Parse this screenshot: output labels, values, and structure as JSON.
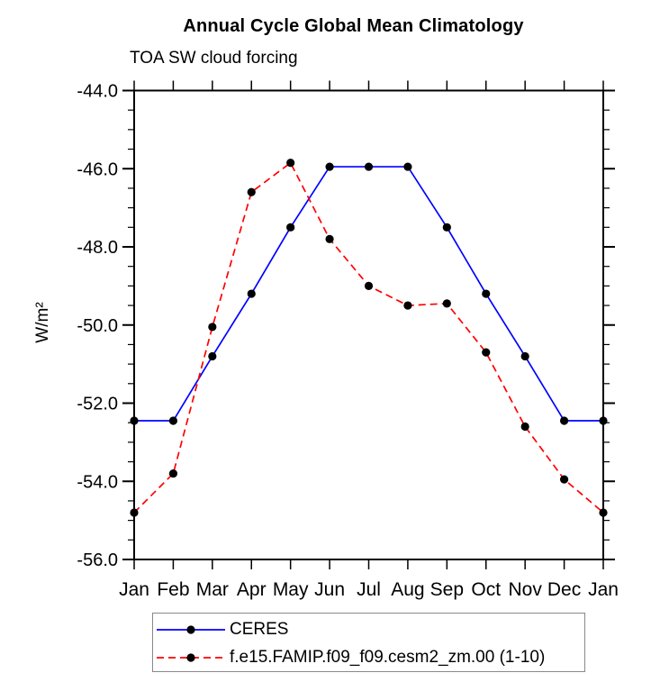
{
  "chart_data": {
    "type": "line",
    "title": "Annual Cycle Global Mean Climatology",
    "subtitle": "TOA SW cloud forcing",
    "ylabel": "W/m²",
    "xlabel": "",
    "categories": [
      "Jan",
      "Feb",
      "Mar",
      "Apr",
      "May",
      "Jun",
      "Jul",
      "Aug",
      "Sep",
      "Oct",
      "Nov",
      "Dec",
      "Jan"
    ],
    "ylim": [
      -56.0,
      -44.0
    ],
    "ytick_step": 2.0,
    "ytick_minor_step": 0.5,
    "ytick_labels": [
      "-44.0",
      "-46.0",
      "-48.0",
      "-50.0",
      "-52.0",
      "-54.0",
      "-56.0"
    ],
    "grid": false,
    "axis_color": "#000000",
    "legend": {
      "position": "bottom-left",
      "border_color": "#888888"
    },
    "series": [
      {
        "name": "CERES",
        "color": "#0000ff",
        "line_style": "solid",
        "marker": "circle",
        "marker_color": "#000000",
        "values": [
          -52.45,
          -52.45,
          -50.8,
          -49.2,
          -47.5,
          -45.95,
          -45.95,
          -45.95,
          -47.5,
          -49.2,
          -50.8,
          -52.45,
          -52.45
        ]
      },
      {
        "name": "f.e15.FAMIP.f09_f09.cesm2_zm.00 (1-10)",
        "color": "#ff0000",
        "line_style": "dashed",
        "marker": "circle",
        "marker_color": "#000000",
        "values": [
          -54.8,
          -53.8,
          -50.05,
          -46.6,
          -45.85,
          -47.8,
          -49.0,
          -49.5,
          -49.45,
          -50.7,
          -52.6,
          -53.95,
          -54.8
        ]
      }
    ]
  }
}
